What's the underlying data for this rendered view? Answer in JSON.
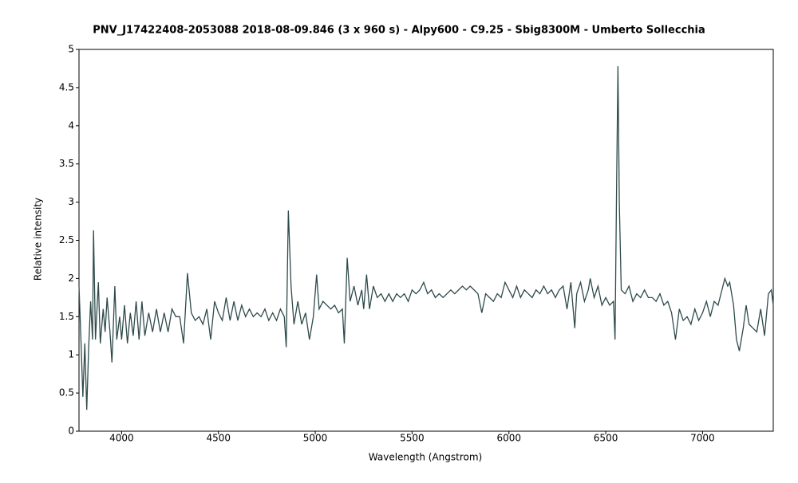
{
  "chart_data": {
    "type": "line",
    "title": "PNV_J17422408-2053088   2018-08-09.846   (3 x 960 s)  - Alpy600 - C9.25 - Sbig8300M - Umberto Sollecchia",
    "x_label": "Wavelength (Angstrom)",
    "y_label": "Relative intensity",
    "color": "#2f4a4a",
    "x": [
      3780,
      3790,
      3800,
      3810,
      3820,
      3830,
      3840,
      3850,
      3855,
      3865,
      3880,
      3890,
      3905,
      3915,
      3925,
      3940,
      3950,
      3965,
      3975,
      3990,
      4000,
      4015,
      4030,
      4045,
      4060,
      4075,
      4090,
      4105,
      4120,
      4140,
      4160,
      4180,
      4200,
      4220,
      4240,
      4260,
      4280,
      4300,
      4320,
      4340,
      4360,
      4380,
      4400,
      4420,
      4440,
      4460,
      4480,
      4500,
      4520,
      4540,
      4560,
      4580,
      4600,
      4620,
      4640,
      4660,
      4680,
      4700,
      4720,
      4740,
      4760,
      4780,
      4800,
      4820,
      4840,
      4850,
      4861,
      4875,
      4890,
      4910,
      4930,
      4950,
      4970,
      4990,
      5007,
      5020,
      5040,
      5060,
      5080,
      5100,
      5120,
      5140,
      5150,
      5165,
      5180,
      5200,
      5220,
      5240,
      5250,
      5265,
      5280,
      5300,
      5320,
      5340,
      5360,
      5380,
      5400,
      5420,
      5440,
      5460,
      5480,
      5500,
      5520,
      5540,
      5560,
      5580,
      5600,
      5620,
      5640,
      5660,
      5680,
      5700,
      5720,
      5740,
      5760,
      5780,
      5800,
      5820,
      5840,
      5860,
      5880,
      5900,
      5920,
      5940,
      5960,
      5980,
      6000,
      6020,
      6040,
      6060,
      6080,
      6100,
      6120,
      6140,
      6160,
      6180,
      6200,
      6220,
      6240,
      6260,
      6280,
      6300,
      6320,
      6340,
      6350,
      6370,
      6390,
      6410,
      6420,
      6440,
      6460,
      6480,
      6500,
      6520,
      6540,
      6548,
      6556,
      6563,
      6570,
      6580,
      6600,
      6620,
      6640,
      6660,
      6680,
      6700,
      6720,
      6740,
      6760,
      6780,
      6800,
      6820,
      6840,
      6860,
      6880,
      6900,
      6920,
      6940,
      6960,
      6980,
      7000,
      7020,
      7040,
      7060,
      7080,
      7100,
      7115,
      7130,
      7140,
      7160,
      7175,
      7190,
      7210,
      7225,
      7240,
      7260,
      7280,
      7300,
      7320,
      7340,
      7355,
      7365
    ],
    "values": [
      1.9,
      1.2,
      0.45,
      1.15,
      0.28,
      1.1,
      1.7,
      1.2,
      2.63,
      1.2,
      1.95,
      1.15,
      1.6,
      1.3,
      1.75,
      1.3,
      0.9,
      1.9,
      1.2,
      1.5,
      1.2,
      1.65,
      1.15,
      1.55,
      1.25,
      1.7,
      1.2,
      1.7,
      1.25,
      1.55,
      1.3,
      1.6,
      1.3,
      1.55,
      1.3,
      1.6,
      1.5,
      1.5,
      1.15,
      2.07,
      1.55,
      1.45,
      1.5,
      1.4,
      1.6,
      1.2,
      1.7,
      1.55,
      1.45,
      1.75,
      1.45,
      1.7,
      1.45,
      1.65,
      1.5,
      1.6,
      1.5,
      1.55,
      1.5,
      1.6,
      1.45,
      1.55,
      1.45,
      1.6,
      1.5,
      1.1,
      2.89,
      1.9,
      1.4,
      1.7,
      1.4,
      1.55,
      1.2,
      1.5,
      2.05,
      1.6,
      1.7,
      1.65,
      1.6,
      1.65,
      1.55,
      1.6,
      1.15,
      2.27,
      1.7,
      1.9,
      1.65,
      1.85,
      1.6,
      2.05,
      1.6,
      1.9,
      1.75,
      1.8,
      1.7,
      1.8,
      1.7,
      1.8,
      1.75,
      1.8,
      1.7,
      1.85,
      1.8,
      1.85,
      1.95,
      1.8,
      1.85,
      1.75,
      1.8,
      1.75,
      1.8,
      1.85,
      1.8,
      1.85,
      1.9,
      1.85,
      1.9,
      1.85,
      1.8,
      1.55,
      1.8,
      1.75,
      1.7,
      1.8,
      1.75,
      1.95,
      1.85,
      1.75,
      1.9,
      1.75,
      1.85,
      1.8,
      1.75,
      1.85,
      1.8,
      1.9,
      1.8,
      1.85,
      1.75,
      1.85,
      1.9,
      1.6,
      1.95,
      1.35,
      1.8,
      1.95,
      1.7,
      1.85,
      2.0,
      1.75,
      1.9,
      1.65,
      1.75,
      1.65,
      1.7,
      1.2,
      3.2,
      4.78,
      3.0,
      1.85,
      1.8,
      1.9,
      1.7,
      1.8,
      1.75,
      1.85,
      1.75,
      1.75,
      1.7,
      1.8,
      1.65,
      1.7,
      1.55,
      1.2,
      1.6,
      1.45,
      1.5,
      1.4,
      1.6,
      1.45,
      1.55,
      1.7,
      1.5,
      1.7,
      1.65,
      1.85,
      2.0,
      1.9,
      1.95,
      1.65,
      1.2,
      1.05,
      1.35,
      1.65,
      1.4,
      1.35,
      1.3,
      1.6,
      1.25,
      1.8,
      1.85,
      1.65
    ],
    "xlim": [
      3780,
      7365
    ],
    "xticks": [
      4000,
      4500,
      5000,
      5500,
      6000,
      6500,
      7000
    ],
    "ylim": [
      0,
      5
    ],
    "yticks": [
      0,
      0.5,
      1,
      1.5,
      2,
      2.5,
      3,
      3.5,
      4,
      4.5,
      5
    ],
    "grid": false
  }
}
